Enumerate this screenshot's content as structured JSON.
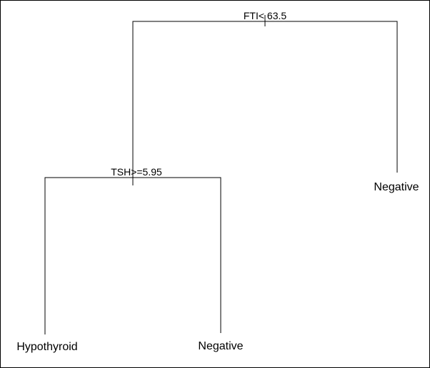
{
  "tree": {
    "root_split": {
      "label": "FTI< 63.5"
    },
    "left_split": {
      "label": "TSH>=5.95"
    },
    "leaves": [
      {
        "id": "left_left",
        "label": "Hypothyroid"
      },
      {
        "id": "left_right",
        "label": "Negative"
      },
      {
        "id": "right",
        "label": "Negative"
      }
    ]
  },
  "colors": {
    "line": "#000000",
    "text": "#000000",
    "background": "#ffffff"
  }
}
